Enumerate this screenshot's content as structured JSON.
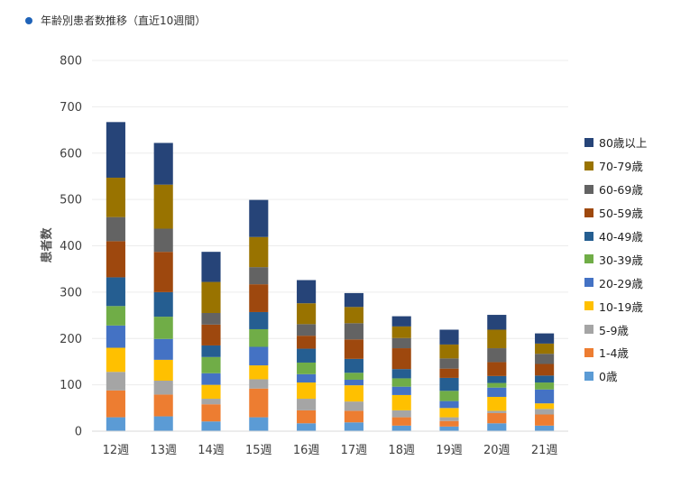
{
  "page": {
    "title": "年齢別患者数推移（直近10週間）"
  },
  "chart_data": {
    "type": "bar",
    "stacked": true,
    "title": "",
    "xlabel": "",
    "ylabel": "患者数",
    "ylim": [
      0,
      800
    ],
    "yticks": [
      0,
      100,
      200,
      300,
      400,
      500,
      600,
      700,
      800
    ],
    "grid": true,
    "legend_position": "right",
    "categories": [
      "12週",
      "13週",
      "14週",
      "15週",
      "16週",
      "17週",
      "18週",
      "19週",
      "20週",
      "21週"
    ],
    "series": [
      {
        "name": "0歳",
        "color": "#5b9bd5",
        "values": [
          30,
          32,
          21,
          30,
          17,
          19,
          12,
          10,
          17,
          12
        ]
      },
      {
        "name": "1-4歳",
        "color": "#ed7d31",
        "values": [
          58,
          47,
          37,
          62,
          28,
          25,
          18,
          12,
          22,
          24
        ]
      },
      {
        "name": "5-9歳",
        "color": "#a5a5a5",
        "values": [
          40,
          30,
          12,
          20,
          25,
          20,
          15,
          8,
          5,
          12
        ]
      },
      {
        "name": "10-19歳",
        "color": "#ffc000",
        "values": [
          52,
          45,
          30,
          30,
          35,
          35,
          33,
          20,
          30,
          12
        ]
      },
      {
        "name": "20-29歳",
        "color": "#4472c4",
        "values": [
          48,
          45,
          25,
          40,
          18,
          12,
          18,
          15,
          20,
          30
        ]
      },
      {
        "name": "30-39歳",
        "color": "#70ad47",
        "values": [
          42,
          48,
          35,
          38,
          25,
          15,
          18,
          22,
          10,
          15
        ]
      },
      {
        "name": "40-49歳",
        "color": "#255e91",
        "values": [
          62,
          53,
          25,
          37,
          30,
          30,
          20,
          28,
          15,
          15
        ]
      },
      {
        "name": "50-59歳",
        "color": "#9e480e",
        "values": [
          78,
          87,
          45,
          60,
          28,
          42,
          45,
          20,
          30,
          25
        ]
      },
      {
        "name": "60-69歳",
        "color": "#636363",
        "values": [
          52,
          50,
          25,
          37,
          25,
          35,
          22,
          22,
          30,
          22
        ]
      },
      {
        "name": "70-79歳",
        "color": "#997300",
        "values": [
          85,
          95,
          67,
          65,
          45,
          35,
          25,
          30,
          40,
          22
        ]
      },
      {
        "name": "80歳以上",
        "color": "#264478",
        "values": [
          120,
          90,
          65,
          80,
          50,
          30,
          22,
          32,
          32,
          22
        ]
      }
    ]
  }
}
